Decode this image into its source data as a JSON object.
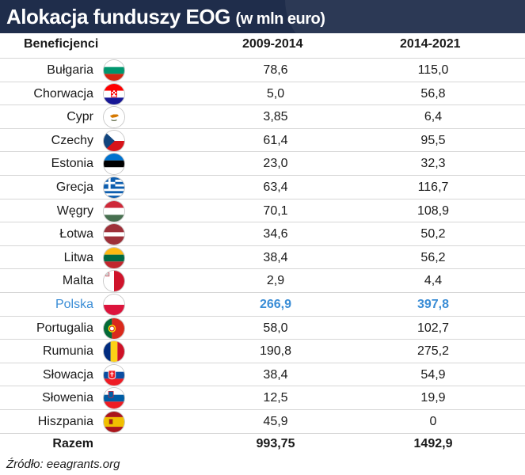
{
  "header": {
    "title": "Alokacja funduszy EOG",
    "subtitle": "(w mln euro)"
  },
  "chart_data": {
    "type": "table",
    "columns": [
      "Beneficjenci",
      "2009-2014",
      "2014-2021"
    ],
    "rows": [
      {
        "country": "Bułgaria",
        "flag": "bulgaria-flag",
        "v2009": "78,6",
        "v2014": "115,0"
      },
      {
        "country": "Chorwacja",
        "flag": "croatia-flag",
        "v2009": "5,0",
        "v2014": "56,8"
      },
      {
        "country": "Cypr",
        "flag": "cyprus-flag",
        "v2009": "3,85",
        "v2014": "6,4"
      },
      {
        "country": "Czechy",
        "flag": "czechia-flag",
        "v2009": "61,4",
        "v2014": "95,5"
      },
      {
        "country": "Estonia",
        "flag": "estonia-flag",
        "v2009": "23,0",
        "v2014": "32,3"
      },
      {
        "country": "Grecja",
        "flag": "greece-flag",
        "v2009": "63,4",
        "v2014": "116,7"
      },
      {
        "country": "Węgry",
        "flag": "hungary-flag",
        "v2009": "70,1",
        "v2014": "108,9"
      },
      {
        "country": "Łotwa",
        "flag": "latvia-flag",
        "v2009": "34,6",
        "v2014": "50,2"
      },
      {
        "country": "Litwa",
        "flag": "lithuania-flag",
        "v2009": "38,4",
        "v2014": "56,2"
      },
      {
        "country": "Malta",
        "flag": "malta-flag",
        "v2009": "2,9",
        "v2014": "4,4"
      },
      {
        "country": "Polska",
        "flag": "poland-flag",
        "v2009": "266,9",
        "v2014": "397,8",
        "highlight": true
      },
      {
        "country": "Portugalia",
        "flag": "portugal-flag",
        "v2009": "58,0",
        "v2014": "102,7"
      },
      {
        "country": "Rumunia",
        "flag": "romania-flag",
        "v2009": "190,8",
        "v2014": "275,2"
      },
      {
        "country": "Słowacja",
        "flag": "slovakia-flag",
        "v2009": "38,4",
        "v2014": "54,9"
      },
      {
        "country": "Słowenia",
        "flag": "slovenia-flag",
        "v2009": "12,5",
        "v2014": "19,9"
      },
      {
        "country": "Hiszpania",
        "flag": "spain-flag",
        "v2009": "45,9",
        "v2014": "0"
      }
    ],
    "total": {
      "label": "Razem",
      "v2009": "993,75",
      "v2014": "1492,9"
    },
    "highlight_color": "#3a8dd6"
  },
  "footer": {
    "source": "Źródło: eeagrants.org"
  },
  "colors": {
    "header_bg": "#1f2d4b",
    "highlight": "#3a8dd6"
  }
}
